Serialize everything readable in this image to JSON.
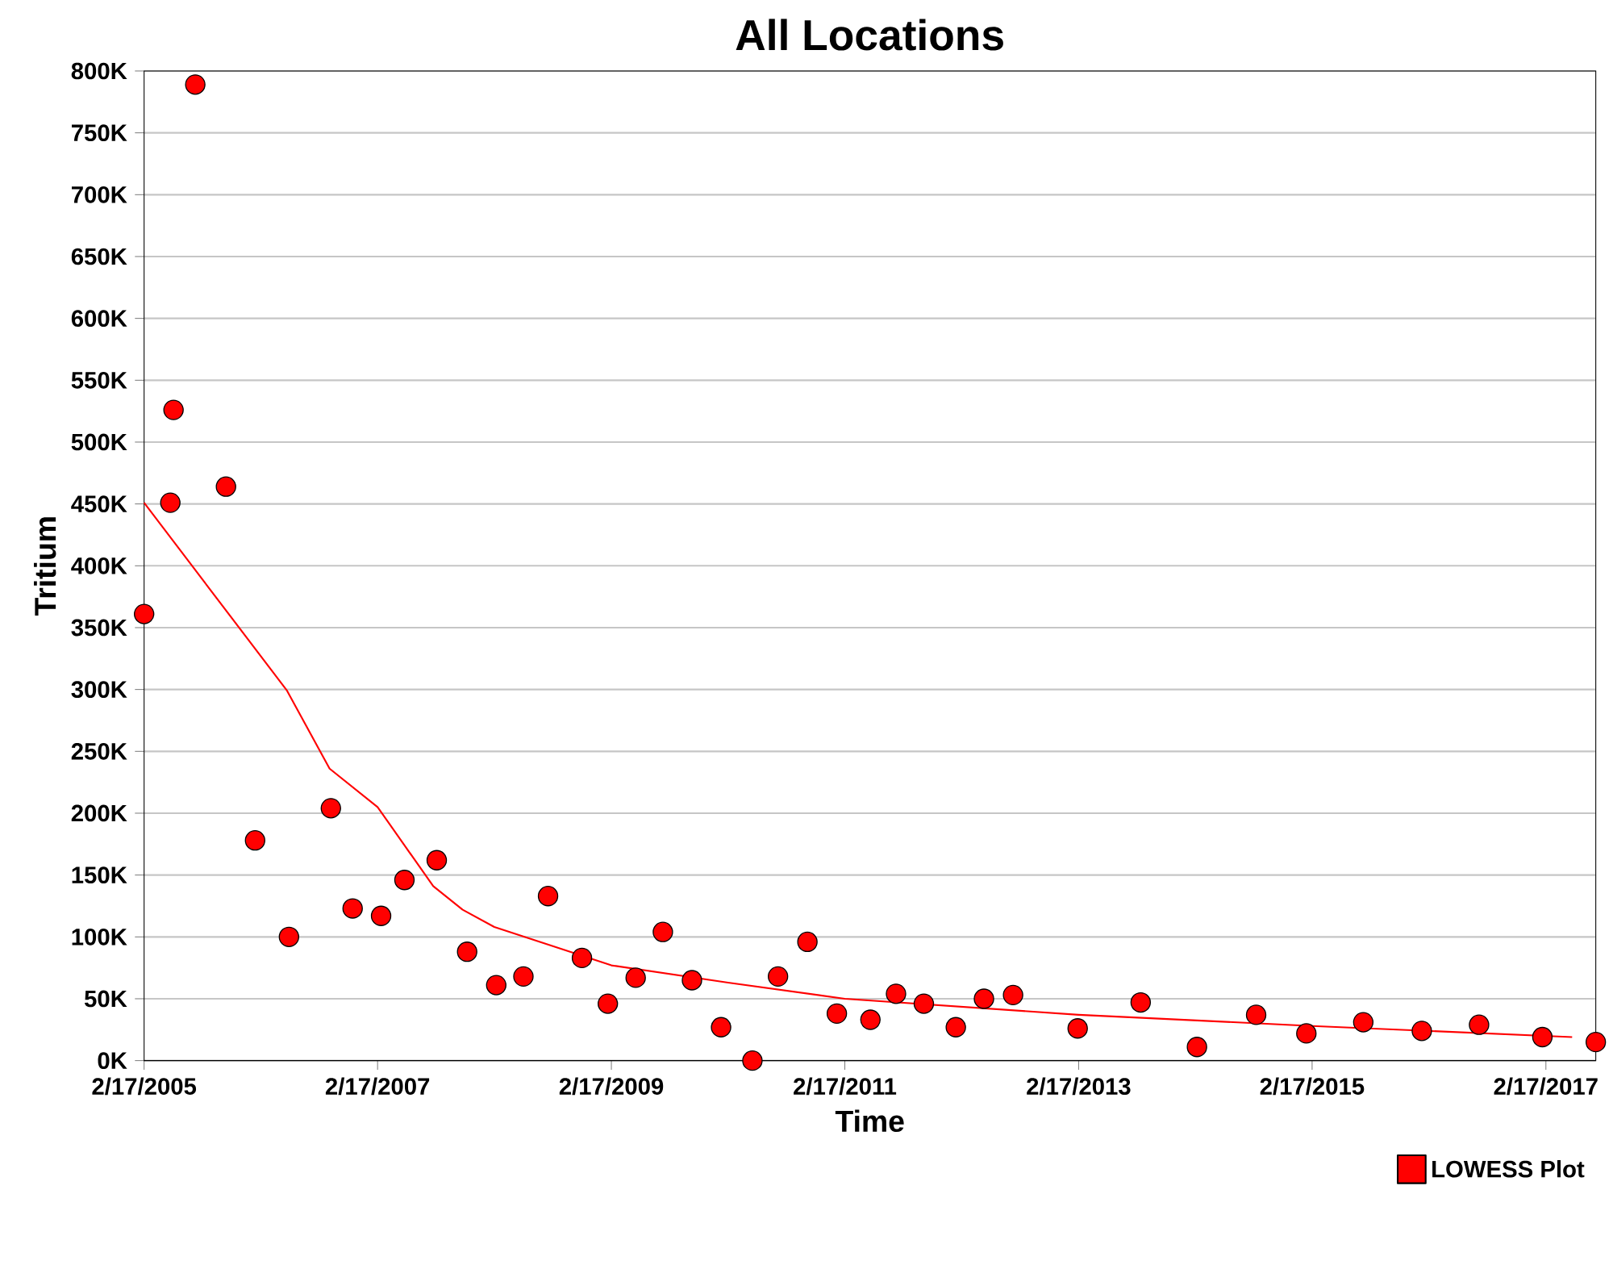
{
  "chart_data": {
    "type": "scatter",
    "title": "All Locations",
    "xlabel": "Time",
    "ylabel": "Tritium",
    "xlim": [
      "2005-02-17",
      "2017-07-23"
    ],
    "xticks": [
      {
        "value": "2005-02-17",
        "label": "2/17/2005"
      },
      {
        "value": "2007-02-17",
        "label": "2/17/2007"
      },
      {
        "value": "2009-02-17",
        "label": "2/17/2009"
      },
      {
        "value": "2011-02-17",
        "label": "2/17/2011"
      },
      {
        "value": "2013-02-17",
        "label": "2/17/2013"
      },
      {
        "value": "2015-02-17",
        "label": "2/17/2015"
      },
      {
        "value": "2017-02-17",
        "label": "2/17/2017"
      }
    ],
    "ylim": [
      0,
      800000
    ],
    "yticks": [
      {
        "value": 0,
        "label": "0K"
      },
      {
        "value": 50000,
        "label": "50K"
      },
      {
        "value": 100000,
        "label": "100K"
      },
      {
        "value": 150000,
        "label": "150K"
      },
      {
        "value": 200000,
        "label": "200K"
      },
      {
        "value": 250000,
        "label": "250K"
      },
      {
        "value": 300000,
        "label": "300K"
      },
      {
        "value": 350000,
        "label": "350K"
      },
      {
        "value": 400000,
        "label": "400K"
      },
      {
        "value": 450000,
        "label": "450K"
      },
      {
        "value": 500000,
        "label": "500K"
      },
      {
        "value": 550000,
        "label": "550K"
      },
      {
        "value": 600000,
        "label": "600K"
      },
      {
        "value": 650000,
        "label": "650K"
      },
      {
        "value": 700000,
        "label": "700K"
      },
      {
        "value": 750000,
        "label": "750K"
      },
      {
        "value": 800000,
        "label": "800K"
      }
    ],
    "grid": "y",
    "legend": "bottom right",
    "series": [
      {
        "marker": "circle",
        "color": "#ff0000",
        "x": [
          "2005-02-17",
          "2005-05-10",
          "2005-05-20",
          "2005-07-27",
          "2005-10-31",
          "2006-01-30",
          "2006-05-16",
          "2006-09-24",
          "2006-12-01",
          "2007-02-28",
          "2007-05-12",
          "2007-08-21",
          "2007-11-24",
          "2008-02-23",
          "2008-05-18",
          "2008-08-03",
          "2008-11-17",
          "2009-02-06",
          "2009-05-04",
          "2009-07-28",
          "2009-10-27",
          "2010-01-26",
          "2010-05-04",
          "2010-07-23",
          "2010-10-23",
          "2011-01-23",
          "2011-05-08",
          "2011-07-27",
          "2011-10-22",
          "2012-01-30",
          "2012-04-27",
          "2012-07-27",
          "2013-02-14",
          "2013-08-30",
          "2014-02-22",
          "2014-08-26",
          "2015-01-30",
          "2015-07-27",
          "2016-01-26",
          "2016-07-23",
          "2017-02-06",
          "2017-07-23"
        ],
        "values": [
          361000,
          451000,
          526000,
          789000,
          464000,
          178000,
          100000,
          204000,
          123000,
          117000,
          146000,
          162000,
          88000,
          61000,
          68000,
          133000,
          83000,
          46000,
          67000,
          104000,
          65000,
          27000,
          0,
          68000,
          96000,
          38000,
          33000,
          54000,
          46000,
          27000,
          50000,
          53000,
          26000,
          47000,
          11000,
          37000,
          22000,
          31000,
          24000,
          29000,
          19000,
          15000
        ]
      },
      {
        "type": "line",
        "name": "LOWESS Plot",
        "marker": "none",
        "color": "#ff0000",
        "x": [
          "2005-02-17",
          "2006-05-10",
          "2006-09-20",
          "2007-02-17",
          "2007-08-10",
          "2007-11-10",
          "2008-02-17",
          "2009-02-17",
          "2010-02-17",
          "2011-02-17",
          "2013-02-17",
          "2015-02-17",
          "2017-05-10"
        ],
        "values": [
          451000,
          299000,
          236000,
          205000,
          141000,
          122000,
          108000,
          77000,
          63000,
          50000,
          37000,
          28000,
          19000
        ]
      }
    ]
  }
}
